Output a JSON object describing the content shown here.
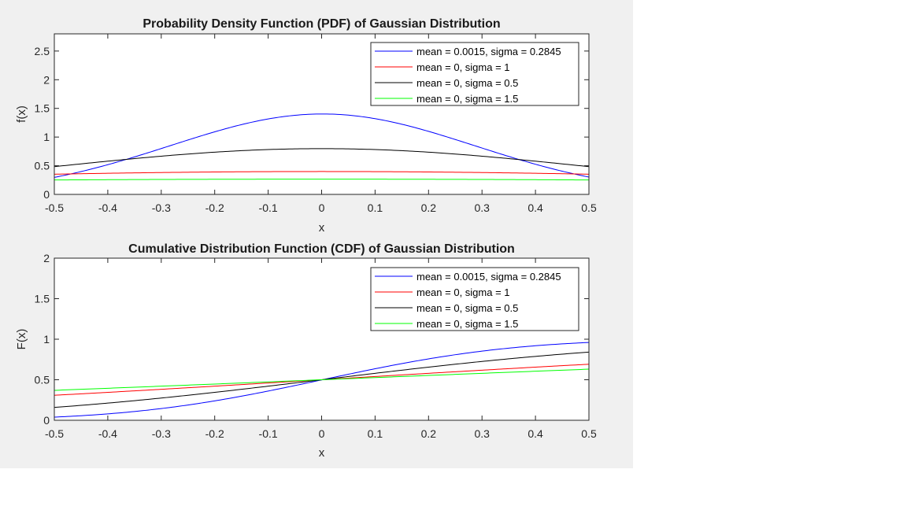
{
  "chart_data": [
    {
      "type": "line",
      "title": "Probability Density Function (PDF) of Gaussian Distribution",
      "xlabel": "x",
      "ylabel": "f(x)",
      "xlim": [
        -0.5,
        0.5
      ],
      "ylim": [
        0,
        2.8
      ],
      "xticks": [
        -0.5,
        -0.4,
        -0.3,
        -0.2,
        -0.1,
        0,
        0.1,
        0.2,
        0.3,
        0.4,
        0.5
      ],
      "xtick_labels": [
        "-0.5",
        "-0.4",
        "-0.3",
        "-0.2",
        "-0.1",
        "0",
        "0.1",
        "0.2",
        "0.3",
        "0.4",
        "0.5"
      ],
      "yticks": [
        0,
        0.5,
        1,
        1.5,
        2,
        2.5
      ],
      "ytick_labels": [
        "0",
        "0.5",
        "1",
        "1.5",
        "2",
        "2.5"
      ],
      "grid": false,
      "legend_position": "top-right",
      "function": "pdf",
      "series": [
        {
          "name": "mean = 0.0015, sigma = 0.2845",
          "mean": 0.0015,
          "sigma": 0.2845,
          "color": "#0000ff"
        },
        {
          "name": "mean = 0, sigma = 1",
          "mean": 0,
          "sigma": 1,
          "color": "#ff0000"
        },
        {
          "name": "mean = 0, sigma = 0.5",
          "mean": 0,
          "sigma": 0.5,
          "color": "#000000"
        },
        {
          "name": "mean = 0, sigma = 1.5",
          "mean": 0,
          "sigma": 1.5,
          "color": "#00ff00"
        }
      ]
    },
    {
      "type": "line",
      "title": "Cumulative Distribution Function (CDF) of Gaussian Distribution",
      "xlabel": "x",
      "ylabel": "F(x)",
      "xlim": [
        -0.5,
        0.5
      ],
      "ylim": [
        0,
        2
      ],
      "xticks": [
        -0.5,
        -0.4,
        -0.3,
        -0.2,
        -0.1,
        0,
        0.1,
        0.2,
        0.3,
        0.4,
        0.5
      ],
      "xtick_labels": [
        "-0.5",
        "-0.4",
        "-0.3",
        "-0.2",
        "-0.1",
        "0",
        "0.1",
        "0.2",
        "0.3",
        "0.4",
        "0.5"
      ],
      "yticks": [
        0,
        0.5,
        1,
        1.5,
        2
      ],
      "ytick_labels": [
        "0",
        "0.5",
        "1",
        "1.5",
        "2"
      ],
      "grid": false,
      "legend_position": "top-right",
      "function": "cdf",
      "series": [
        {
          "name": "mean = 0.0015, sigma = 0.2845",
          "mean": 0.0015,
          "sigma": 0.2845,
          "color": "#0000ff"
        },
        {
          "name": "mean = 0, sigma = 1",
          "mean": 0,
          "sigma": 1,
          "color": "#ff0000"
        },
        {
          "name": "mean = 0, sigma = 0.5",
          "mean": 0,
          "sigma": 0.5,
          "color": "#000000"
        },
        {
          "name": "mean = 0, sigma = 1.5",
          "mean": 0,
          "sigma": 1.5,
          "color": "#00ff00"
        }
      ]
    }
  ]
}
